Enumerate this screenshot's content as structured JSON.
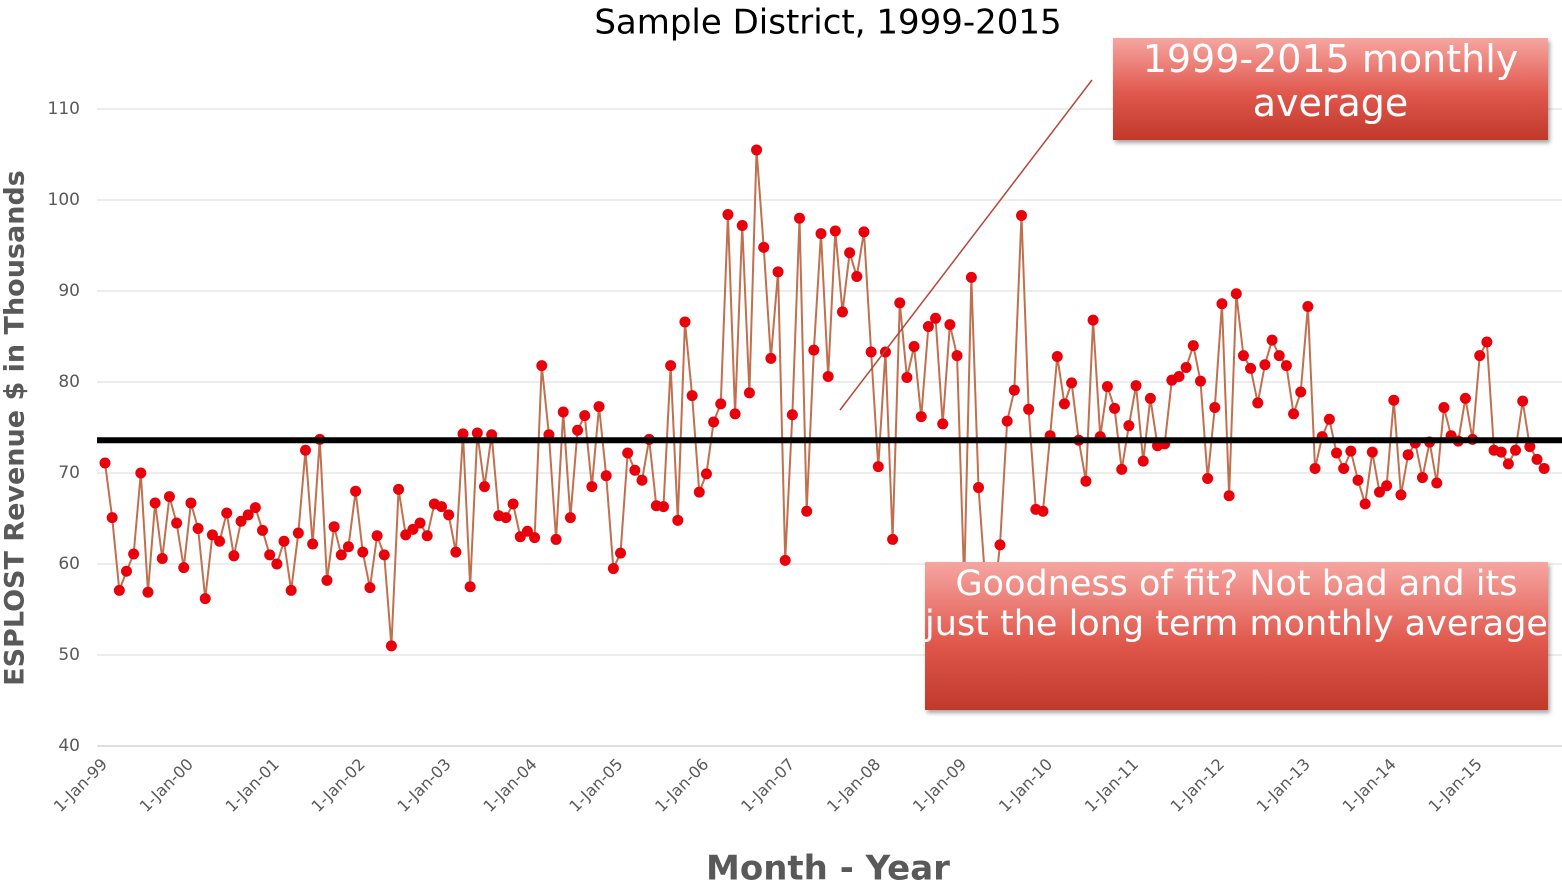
{
  "chart_data": {
    "type": "line",
    "title": "Sample District, 1999-2015",
    "x_label": "Month - Year",
    "y_label": "ESPLOST Revenue $ in Thousands",
    "color": "#c0704f",
    "marker_color": "#e8000b",
    "ylim": [
      40,
      110
    ],
    "yticks": [
      40,
      50,
      60,
      70,
      80,
      90,
      100,
      110
    ],
    "grid": true,
    "reference_line": {
      "value": 73.6,
      "color": "#000000"
    },
    "annotations": [
      "1999-2015 monthly average",
      "Goodness of fit? Not bad and its just the long term monthly average"
    ],
    "categories": [
      "1-Jan-99",
      null,
      null,
      null,
      null,
      null,
      null,
      null,
      null,
      null,
      null,
      null,
      "1-Jan-00",
      null,
      null,
      null,
      null,
      null,
      null,
      null,
      null,
      null,
      null,
      null,
      "1-Jan-01",
      null,
      null,
      null,
      null,
      null,
      null,
      null,
      null,
      null,
      null,
      null,
      "1-Jan-02",
      null,
      null,
      null,
      null,
      null,
      null,
      null,
      null,
      null,
      null,
      null,
      "1-Jan-03",
      null,
      null,
      null,
      null,
      null,
      null,
      null,
      null,
      null,
      null,
      null,
      "1-Jan-04",
      null,
      null,
      null,
      null,
      null,
      null,
      null,
      null,
      null,
      null,
      null,
      "1-Jan-05",
      null,
      null,
      null,
      null,
      null,
      null,
      null,
      null,
      null,
      null,
      null,
      "1-Jan-06",
      null,
      null,
      null,
      null,
      null,
      null,
      null,
      null,
      null,
      null,
      null,
      "1-Jan-07",
      null,
      null,
      null,
      null,
      null,
      null,
      null,
      null,
      null,
      null,
      null,
      "1-Jan-08",
      null,
      null,
      null,
      null,
      null,
      null,
      null,
      null,
      null,
      null,
      null,
      "1-Jan-09",
      null,
      null,
      null,
      null,
      null,
      null,
      null,
      null,
      null,
      null,
      null,
      "1-Jan-10",
      null,
      null,
      null,
      null,
      null,
      null,
      null,
      null,
      null,
      null,
      null,
      "1-Jan-11",
      null,
      null,
      null,
      null,
      null,
      null,
      null,
      null,
      null,
      null,
      null,
      "1-Jan-12",
      null,
      null,
      null,
      null,
      null,
      null,
      null,
      null,
      null,
      null,
      null,
      "1-Jan-13",
      null,
      null,
      null,
      null,
      null,
      null,
      null,
      null,
      null,
      null,
      null,
      "1-Jan-14",
      null,
      null,
      null,
      null,
      null,
      null,
      null,
      null,
      null,
      null,
      null,
      "1-Jan-15",
      null,
      null,
      null,
      null,
      null,
      null,
      null,
      null,
      null
    ],
    "values": [
      71.1,
      65.1,
      57.1,
      59.2,
      61.1,
      70.0,
      56.9,
      66.7,
      60.6,
      67.4,
      64.5,
      59.6,
      66.7,
      63.9,
      56.2,
      63.2,
      62.5,
      65.6,
      60.9,
      64.7,
      65.4,
      66.2,
      63.7,
      61.0,
      60.0,
      62.5,
      57.1,
      63.4,
      72.5,
      62.2,
      73.7,
      58.2,
      64.1,
      61.0,
      61.9,
      68.0,
      61.3,
      57.4,
      63.1,
      61.0,
      51.0,
      68.2,
      63.2,
      63.8,
      64.5,
      63.1,
      66.6,
      66.3,
      65.4,
      61.3,
      74.3,
      57.5,
      74.4,
      68.5,
      74.2,
      65.3,
      65.1,
      66.6,
      63.0,
      63.6,
      62.9,
      81.8,
      74.2,
      62.7,
      76.7,
      65.1,
      74.7,
      76.3,
      68.5,
      77.3,
      69.7,
      59.5,
      61.2,
      72.2,
      70.3,
      69.2,
      73.7,
      66.4,
      66.3,
      81.8,
      64.8,
      86.6,
      78.5,
      67.9,
      69.9,
      75.6,
      77.6,
      98.4,
      76.5,
      97.2,
      78.8,
      105.5,
      94.8,
      82.6,
      92.1,
      60.4,
      76.4,
      98.0,
      65.8,
      83.5,
      96.3,
      80.6,
      96.6,
      87.7,
      94.2,
      91.6,
      96.5,
      83.3,
      70.7,
      83.3,
      62.7,
      88.7,
      80.5,
      83.9,
      76.2,
      86.1,
      87.0,
      75.4,
      86.3,
      82.9,
      58.0,
      91.5,
      68.4,
      57.5,
      55.0,
      62.1,
      75.7,
      79.1,
      98.3,
      77.0,
      66.0,
      65.8,
      74.1,
      82.8,
      77.6,
      79.9,
      73.6,
      69.1,
      86.8,
      74.0,
      79.5,
      77.1,
      70.4,
      75.2,
      79.6,
      71.3,
      78.2,
      73.0,
      73.2,
      80.2,
      80.6,
      81.6,
      84.0,
      80.1,
      69.4,
      77.2,
      88.6,
      67.5,
      89.7,
      82.9,
      81.5,
      77.7,
      81.9,
      84.6,
      82.9,
      81.8,
      76.5,
      78.9,
      88.3,
      70.5,
      74.0,
      75.9,
      72.2,
      70.5,
      72.4,
      69.2,
      66.6,
      72.3,
      67.9,
      68.6,
      78.0,
      67.6,
      72.0,
      73.3,
      69.5,
      73.4,
      68.9,
      77.2,
      74.1,
      73.5,
      78.2,
      73.7,
      82.9,
      84.4,
      72.5,
      72.3,
      71.0,
      72.5,
      77.9,
      72.9,
      71.5,
      70.5
    ]
  }
}
